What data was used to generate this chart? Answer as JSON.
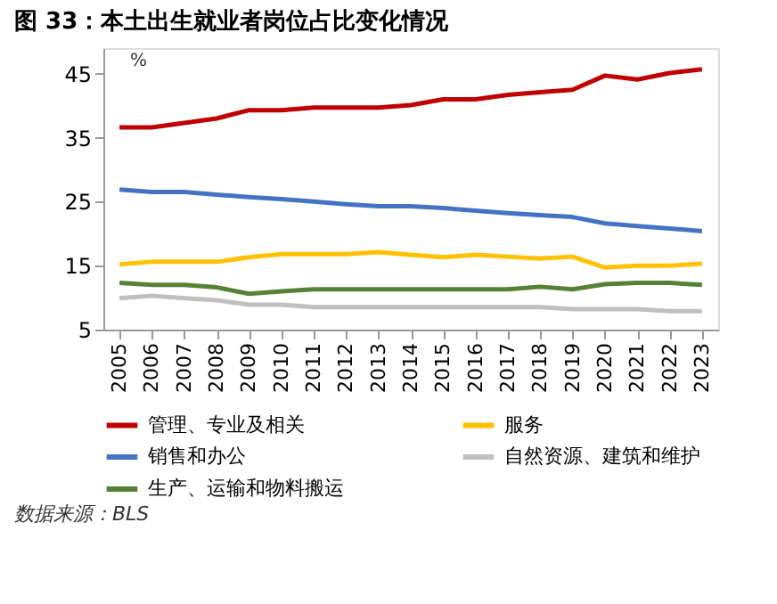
{
  "chart_data": {
    "type": "line",
    "title": "图 33：本土出生就业者岗位占比变化情况",
    "annotations": [
      "%",
      "数据来源：BLS"
    ],
    "categories": [
      "2005",
      "2006",
      "2007",
      "2008",
      "2009",
      "2010",
      "2011",
      "2012",
      "2013",
      "2014",
      "2015",
      "2016",
      "2017",
      "2018",
      "2019",
      "2020",
      "2021",
      "2022",
      "2023"
    ],
    "series": [
      {
        "name": "管理、专业及相关",
        "color": "#c00000",
        "values": [
          36.6,
          36.6,
          37.3,
          38.0,
          39.3,
          39.3,
          39.7,
          39.7,
          39.7,
          40.1,
          41.0,
          41.0,
          41.7,
          42.1,
          42.5,
          44.7,
          44.1,
          45.1,
          45.7
        ]
      },
      {
        "name": "服务",
        "color": "#ffc000",
        "values": [
          15.2,
          15.6,
          15.6,
          15.6,
          16.3,
          16.8,
          16.8,
          16.8,
          17.1,
          16.7,
          16.3,
          16.7,
          16.4,
          16.1,
          16.4,
          14.7,
          15.0,
          15.0,
          15.3
        ]
      },
      {
        "name": "销售和办公",
        "color": "#4472c4",
        "values": [
          26.9,
          26.5,
          26.5,
          26.1,
          25.7,
          25.4,
          25.0,
          24.6,
          24.3,
          24.3,
          24.0,
          23.6,
          23.2,
          22.9,
          22.6,
          21.6,
          21.2,
          20.8,
          20.4
        ]
      },
      {
        "name": "自然资源、建筑和维护",
        "color": "#bfbfbf",
        "values": [
          9.9,
          10.3,
          9.9,
          9.6,
          8.9,
          8.9,
          8.5,
          8.5,
          8.5,
          8.5,
          8.5,
          8.5,
          8.5,
          8.5,
          8.2,
          8.2,
          8.2,
          7.9,
          7.9
        ]
      },
      {
        "name": "生产、运输和物料搬运",
        "color": "#548235",
        "values": [
          12.3,
          12.0,
          12.0,
          11.6,
          10.6,
          11.0,
          11.3,
          11.3,
          11.3,
          11.3,
          11.3,
          11.3,
          11.3,
          11.7,
          11.3,
          12.1,
          12.3,
          12.3,
          12.0
        ]
      }
    ],
    "ylim": [
      5,
      49
    ],
    "yticks": [
      5,
      15,
      25,
      35,
      45
    ],
    "grid": false,
    "legend": "bottom",
    "marker": "none",
    "line_style": "solid"
  }
}
